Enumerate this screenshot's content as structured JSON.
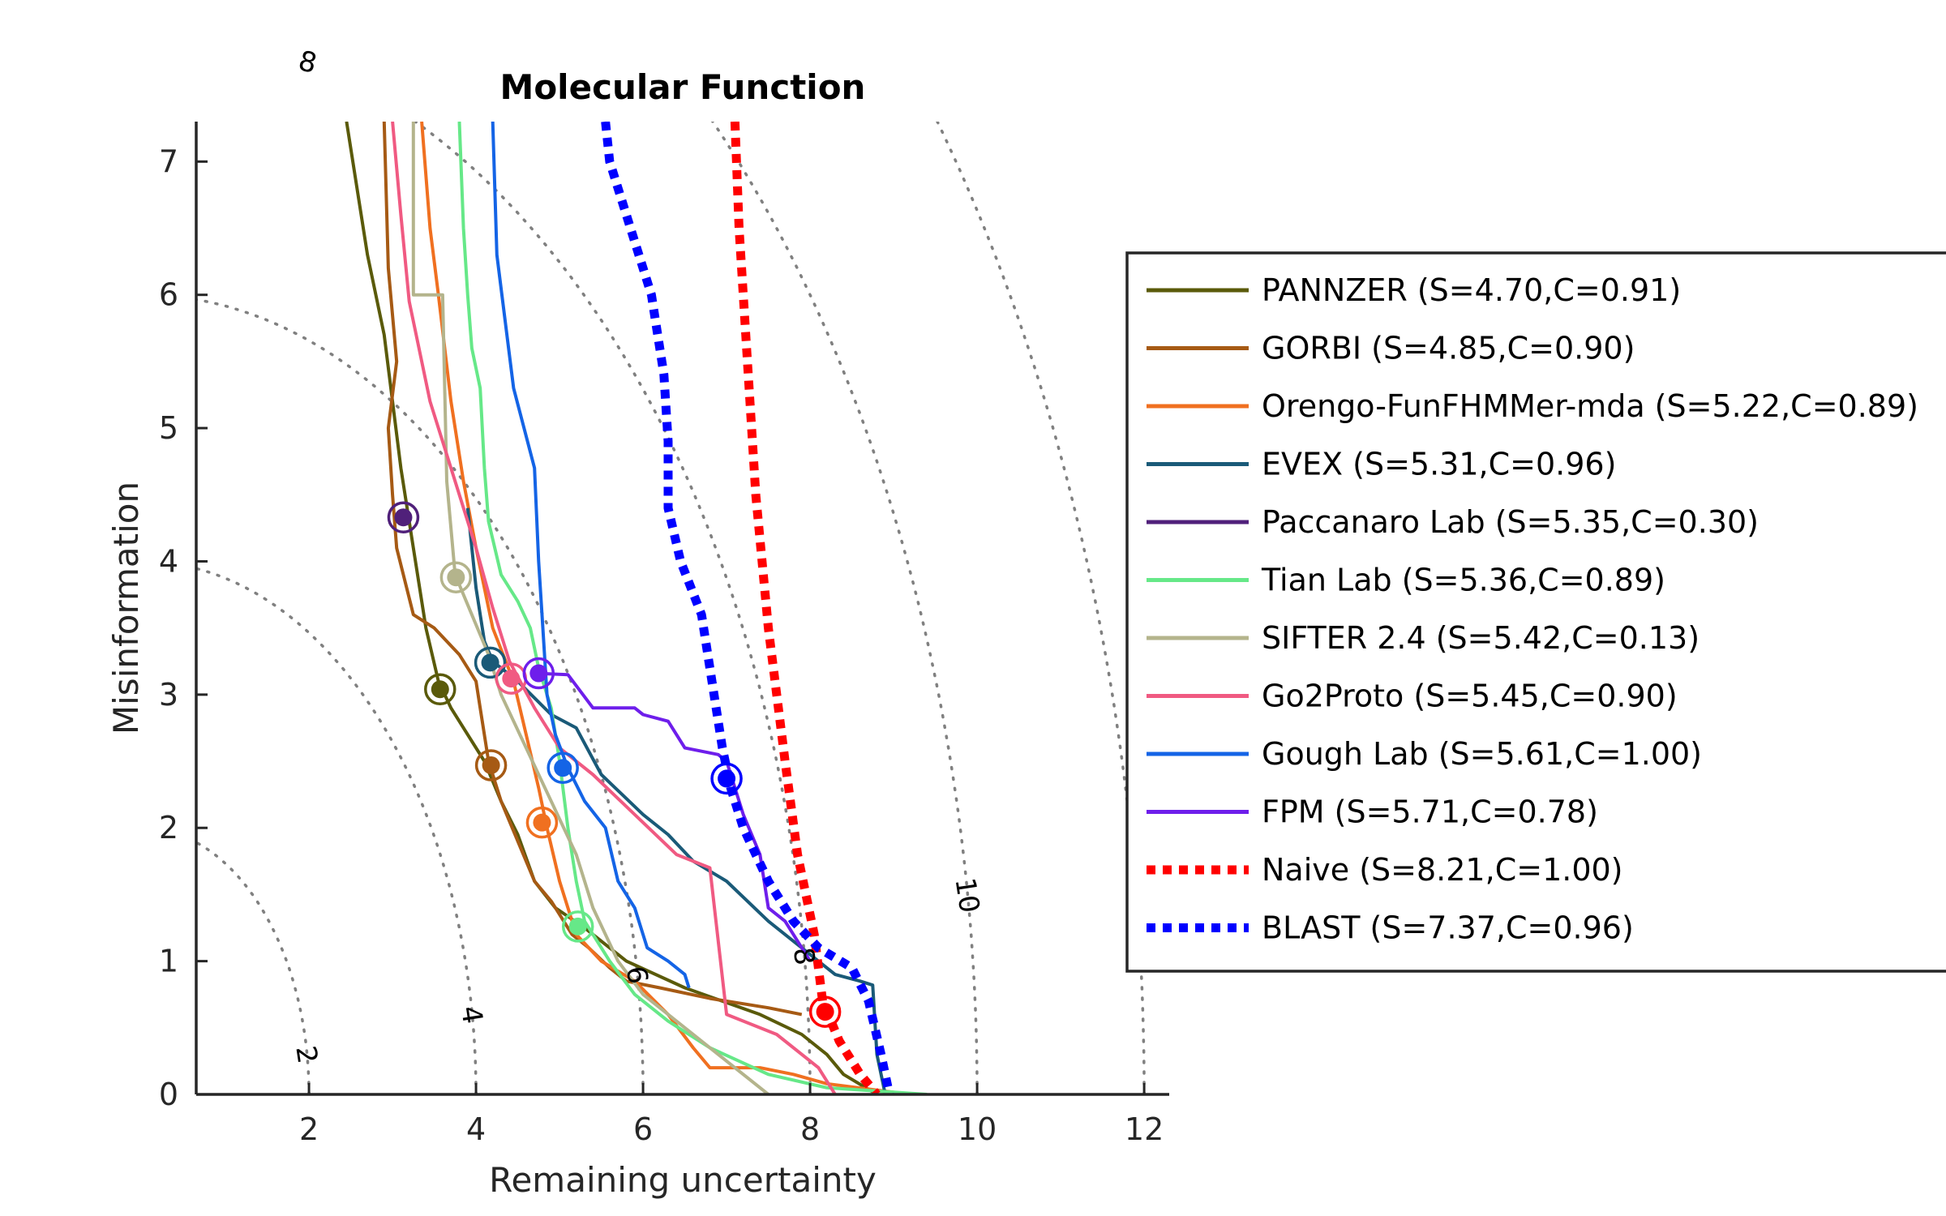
{
  "chart_data": {
    "type": "line",
    "title": "Molecular Function",
    "xlabel": "Remaining uncertainty",
    "ylabel": "Misinformation",
    "xlim": [
      0.65,
      12.3
    ],
    "ylim": [
      0,
      7.3
    ],
    "xticks": [
      2,
      4,
      6,
      8,
      10,
      12
    ],
    "yticks": [
      0,
      1,
      2,
      3,
      4,
      5,
      6,
      7
    ],
    "grid": false,
    "legend_position": "right",
    "contours": [
      {
        "r": 2,
        "label": "2"
      },
      {
        "r": 4,
        "label": "4"
      },
      {
        "r": 6,
        "label": "6"
      },
      {
        "r": 8,
        "label": "8"
      },
      {
        "r": 10,
        "label": "10"
      },
      {
        "r": 12,
        "label": ""
      }
    ],
    "series": [
      {
        "name": "PANNZER (S=4.70,C=0.91)",
        "color": "#5a5a0a",
        "style": "solid",
        "marker": [
          3.57,
          3.04
        ],
        "points": [
          [
            2.45,
            7.3
          ],
          [
            2.7,
            6.3
          ],
          [
            2.9,
            5.7
          ],
          [
            3.1,
            4.7
          ],
          [
            3.25,
            4.1
          ],
          [
            3.4,
            3.5
          ],
          [
            3.55,
            3.1
          ],
          [
            3.7,
            2.9
          ],
          [
            3.9,
            2.7
          ],
          [
            4.1,
            2.5
          ],
          [
            4.3,
            2.2
          ],
          [
            4.5,
            1.95
          ],
          [
            4.7,
            1.6
          ],
          [
            4.95,
            1.4
          ],
          [
            5.3,
            1.25
          ],
          [
            5.8,
            1.0
          ],
          [
            6.5,
            0.8
          ],
          [
            7.4,
            0.6
          ],
          [
            7.9,
            0.45
          ],
          [
            8.2,
            0.3
          ],
          [
            8.4,
            0.15
          ],
          [
            8.8,
            0.0
          ]
        ]
      },
      {
        "name": "GORBI (S=4.85,C=0.90)",
        "color": "#a65a14",
        "style": "solid",
        "marker": [
          4.18,
          2.47
        ],
        "points": [
          [
            2.9,
            7.3
          ],
          [
            2.95,
            6.2
          ],
          [
            3.05,
            5.5
          ],
          [
            2.95,
            5.0
          ],
          [
            3.0,
            4.5
          ],
          [
            3.05,
            4.1
          ],
          [
            3.25,
            3.6
          ],
          [
            3.5,
            3.5
          ],
          [
            3.8,
            3.3
          ],
          [
            4.0,
            3.1
          ],
          [
            4.05,
            2.9
          ],
          [
            4.15,
            2.5
          ],
          [
            4.3,
            2.2
          ],
          [
            4.5,
            1.9
          ],
          [
            4.7,
            1.6
          ],
          [
            4.9,
            1.45
          ],
          [
            5.15,
            1.2
          ],
          [
            5.35,
            1.1
          ],
          [
            5.6,
            0.95
          ],
          [
            5.8,
            0.85
          ],
          [
            6.2,
            0.8
          ],
          [
            6.8,
            0.72
          ],
          [
            7.5,
            0.65
          ],
          [
            7.9,
            0.6
          ]
        ]
      },
      {
        "name": "Orengo-FunFHMMer-mda (S=5.22,C=0.89)",
        "color": "#f07020",
        "style": "solid",
        "marker": [
          4.79,
          2.04
        ],
        "points": [
          [
            3.35,
            7.3
          ],
          [
            3.45,
            6.5
          ],
          [
            3.55,
            6.0
          ],
          [
            3.7,
            5.2
          ],
          [
            3.85,
            4.6
          ],
          [
            4.0,
            4.1
          ],
          [
            4.2,
            3.5
          ],
          [
            4.45,
            3.1
          ],
          [
            4.6,
            2.7
          ],
          [
            4.75,
            2.3
          ],
          [
            4.85,
            2.0
          ],
          [
            5.0,
            1.6
          ],
          [
            5.2,
            1.2
          ],
          [
            5.5,
            1.0
          ],
          [
            5.9,
            0.85
          ],
          [
            6.3,
            0.6
          ],
          [
            6.6,
            0.35
          ],
          [
            6.8,
            0.2
          ],
          [
            7.4,
            0.2
          ],
          [
            7.8,
            0.15
          ],
          [
            8.2,
            0.08
          ],
          [
            9.2,
            0.0
          ]
        ]
      },
      {
        "name": "EVEX (S=5.31,C=0.96)",
        "color": "#1a5a78",
        "style": "solid",
        "marker": [
          4.17,
          3.24
        ],
        "points": [
          [
            3.9,
            4.4
          ],
          [
            4.0,
            3.8
          ],
          [
            4.1,
            3.4
          ],
          [
            4.2,
            3.25
          ],
          [
            4.5,
            3.1
          ],
          [
            4.9,
            2.85
          ],
          [
            5.2,
            2.75
          ],
          [
            5.5,
            2.4
          ],
          [
            6.0,
            2.1
          ],
          [
            6.3,
            1.95
          ],
          [
            6.6,
            1.75
          ],
          [
            7.0,
            1.6
          ],
          [
            7.5,
            1.3
          ],
          [
            8.0,
            1.05
          ],
          [
            8.3,
            0.9
          ],
          [
            8.6,
            0.85
          ],
          [
            8.75,
            0.82
          ],
          [
            8.8,
            0.3
          ],
          [
            8.9,
            0.0
          ]
        ]
      },
      {
        "name": "Paccanaro Lab (S=5.35,C=0.30)",
        "color": "#50207a",
        "style": "solid",
        "marker": [
          3.13,
          4.33
        ],
        "points": [
          [
            3.13,
            4.33
          ]
        ]
      },
      {
        "name": "Tian Lab (S=5.36,C=0.89)",
        "color": "#66e888",
        "style": "solid",
        "marker": [
          5.22,
          1.26
        ],
        "points": [
          [
            3.8,
            7.3
          ],
          [
            3.85,
            6.5
          ],
          [
            3.9,
            6.0
          ],
          [
            3.95,
            5.6
          ],
          [
            4.05,
            5.3
          ],
          [
            4.1,
            4.7
          ],
          [
            4.15,
            4.3
          ],
          [
            4.3,
            3.9
          ],
          [
            4.5,
            3.7
          ],
          [
            4.65,
            3.5
          ],
          [
            4.75,
            3.2
          ],
          [
            4.9,
            2.9
          ],
          [
            5.0,
            2.5
          ],
          [
            5.1,
            2.0
          ],
          [
            5.2,
            1.6
          ],
          [
            5.3,
            1.3
          ],
          [
            5.6,
            1.0
          ],
          [
            5.9,
            0.75
          ],
          [
            6.3,
            0.55
          ],
          [
            6.8,
            0.35
          ],
          [
            7.5,
            0.15
          ],
          [
            8.2,
            0.05
          ],
          [
            9.4,
            0.0
          ]
        ]
      },
      {
        "name": "SIFTER 2.4 (S=5.42,C=0.13)",
        "color": "#b4b48c",
        "style": "solid",
        "marker": [
          3.76,
          3.88
        ],
        "points": [
          [
            3.25,
            7.3
          ],
          [
            3.25,
            6.0
          ],
          [
            3.6,
            6.0
          ],
          [
            3.65,
            4.6
          ],
          [
            3.75,
            3.9
          ],
          [
            3.95,
            3.6
          ],
          [
            4.15,
            3.3
          ],
          [
            4.3,
            3.0
          ],
          [
            4.6,
            2.6
          ],
          [
            4.9,
            2.2
          ],
          [
            5.2,
            1.8
          ],
          [
            5.4,
            1.4
          ],
          [
            5.7,
            1.0
          ],
          [
            6.0,
            0.75
          ],
          [
            6.5,
            0.5
          ],
          [
            7.0,
            0.25
          ],
          [
            7.5,
            0.0
          ]
        ]
      },
      {
        "name": "Go2Proto (S=5.45,C=0.90)",
        "color": "#f05a82",
        "style": "solid",
        "marker": [
          4.42,
          3.12
        ],
        "points": [
          [
            3.0,
            7.3
          ],
          [
            3.1,
            6.6
          ],
          [
            3.2,
            5.95
          ],
          [
            3.45,
            5.2
          ],
          [
            3.7,
            4.7
          ],
          [
            4.0,
            4.1
          ],
          [
            4.2,
            3.65
          ],
          [
            4.4,
            3.25
          ],
          [
            4.7,
            2.9
          ],
          [
            5.0,
            2.6
          ],
          [
            5.4,
            2.4
          ],
          [
            5.9,
            2.1
          ],
          [
            6.4,
            1.8
          ],
          [
            6.8,
            1.7
          ],
          [
            7.0,
            0.6
          ],
          [
            7.6,
            0.45
          ],
          [
            8.1,
            0.2
          ],
          [
            8.3,
            0.0
          ]
        ]
      },
      {
        "name": "Gough Lab (S=5.61,C=1.00)",
        "color": "#1464e6",
        "style": "solid",
        "marker": [
          5.04,
          2.45
        ],
        "points": [
          [
            4.2,
            7.3
          ],
          [
            4.25,
            6.3
          ],
          [
            4.35,
            5.8
          ],
          [
            4.45,
            5.3
          ],
          [
            4.7,
            4.7
          ],
          [
            4.75,
            4.0
          ],
          [
            4.8,
            3.5
          ],
          [
            4.85,
            3.0
          ],
          [
            4.95,
            2.7
          ],
          [
            5.1,
            2.45
          ],
          [
            5.3,
            2.2
          ],
          [
            5.55,
            2.0
          ],
          [
            5.7,
            1.6
          ],
          [
            5.9,
            1.4
          ],
          [
            6.05,
            1.1
          ],
          [
            6.3,
            1.0
          ],
          [
            6.5,
            0.9
          ],
          [
            6.55,
            0.8
          ]
        ]
      },
      {
        "name": "FPM (S=5.71,C=0.78)",
        "color": "#6e1eeb",
        "style": "solid",
        "marker": [
          4.75,
          3.16
        ],
        "points": [
          [
            4.7,
            3.16
          ],
          [
            5.1,
            3.15
          ],
          [
            5.4,
            2.9
          ],
          [
            5.9,
            2.9
          ],
          [
            6.0,
            2.85
          ],
          [
            6.3,
            2.8
          ],
          [
            6.5,
            2.6
          ],
          [
            6.9,
            2.55
          ],
          [
            7.0,
            2.5
          ],
          [
            7.2,
            2.1
          ],
          [
            7.4,
            1.8
          ],
          [
            7.5,
            1.4
          ],
          [
            7.7,
            1.3
          ],
          [
            8.0,
            1.0
          ]
        ]
      },
      {
        "name": "Naive (S=8.21,C=1.00)",
        "color": "#ff0000",
        "style": "dotted",
        "marker": [
          8.18,
          0.62
        ],
        "points": [
          [
            7.1,
            7.3
          ],
          [
            7.15,
            6.5
          ],
          [
            7.25,
            5.5
          ],
          [
            7.35,
            4.5
          ],
          [
            7.5,
            3.5
          ],
          [
            7.7,
            2.5
          ],
          [
            7.85,
            1.8
          ],
          [
            8.05,
            1.2
          ],
          [
            8.15,
            0.7
          ],
          [
            8.35,
            0.4
          ],
          [
            8.6,
            0.15
          ],
          [
            8.8,
            0.0
          ]
        ]
      },
      {
        "name": "BLAST (S=7.37,C=0.96)",
        "color": "#0000ff",
        "style": "dotted",
        "marker": [
          7.0,
          2.37
        ],
        "points": [
          [
            5.55,
            7.3
          ],
          [
            5.6,
            7.0
          ],
          [
            5.85,
            6.5
          ],
          [
            6.1,
            6.0
          ],
          [
            6.25,
            5.4
          ],
          [
            6.3,
            4.9
          ],
          [
            6.3,
            4.4
          ],
          [
            6.45,
            4.0
          ],
          [
            6.7,
            3.6
          ],
          [
            6.85,
            3.0
          ],
          [
            6.95,
            2.6
          ],
          [
            7.05,
            2.3
          ],
          [
            7.2,
            2.0
          ],
          [
            7.5,
            1.6
          ],
          [
            7.8,
            1.3
          ],
          [
            8.1,
            1.1
          ],
          [
            8.5,
            0.95
          ],
          [
            8.7,
            0.7
          ],
          [
            8.85,
            0.3
          ],
          [
            8.95,
            0.0
          ]
        ]
      }
    ]
  }
}
